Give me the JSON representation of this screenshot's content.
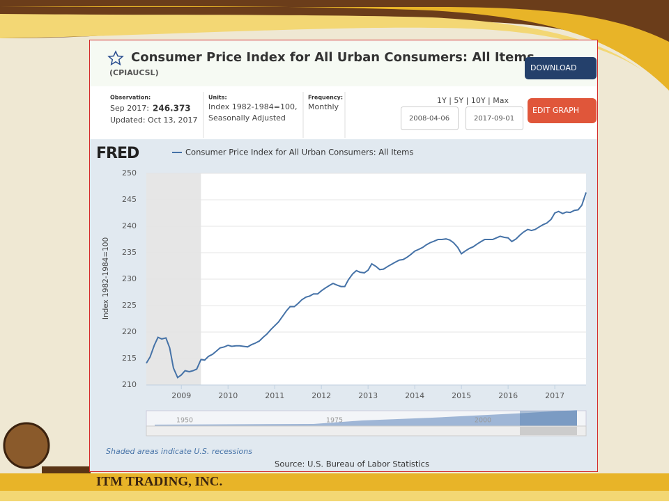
{
  "header": {
    "title": "Consumer Price Index for All Urban Consumers: All Items",
    "series_id": "(CPIAUCSL)",
    "download": "DOWNLOAD"
  },
  "info": {
    "observation_label": "Observation:",
    "observation_date": "Sep 2017:",
    "observation_value": "246.373",
    "updated": "Updated: Oct 13, 2017",
    "units_label": "Units:",
    "units_1": "Index 1982-1984=100,",
    "units_2": "Seasonally Adjusted",
    "frequency_label": "Frequency:",
    "frequency": "Monthly",
    "ranges": "1Y | 5Y | 10Y | Max",
    "start_date": "2008-04-06",
    "end_date": "2017-09-01",
    "edit": "EDIT GRAPH"
  },
  "chart_data": {
    "type": "line",
    "logo": "FRED",
    "ylabel": "Index 1982-1984=100",
    "series": [
      {
        "name": "Consumer Price Index for All Urban Consumers: All Items",
        "color": "#4572a7",
        "x": [
          2008.25,
          2008.33,
          2008.42,
          2008.5,
          2008.58,
          2008.67,
          2008.75,
          2008.83,
          2008.92,
          2009,
          2009.08,
          2009.17,
          2009.25,
          2009.33,
          2009.42,
          2009.5,
          2009.58,
          2009.67,
          2009.75,
          2009.83,
          2009.92,
          2010,
          2010.08,
          2010.17,
          2010.25,
          2010.33,
          2010.42,
          2010.5,
          2010.58,
          2010.67,
          2010.75,
          2010.83,
          2010.92,
          2011,
          2011.08,
          2011.17,
          2011.25,
          2011.33,
          2011.42,
          2011.5,
          2011.58,
          2011.67,
          2011.75,
          2011.83,
          2011.92,
          2012,
          2012.08,
          2012.17,
          2012.25,
          2012.33,
          2012.42,
          2012.5,
          2012.58,
          2012.67,
          2012.75,
          2012.83,
          2012.92,
          2013,
          2013.08,
          2013.17,
          2013.25,
          2013.33,
          2013.42,
          2013.5,
          2013.58,
          2013.67,
          2013.75,
          2013.83,
          2013.92,
          2014,
          2014.08,
          2014.17,
          2014.25,
          2014.33,
          2014.42,
          2014.5,
          2014.58,
          2014.67,
          2014.75,
          2014.83,
          2014.92,
          2015,
          2015.08,
          2015.17,
          2015.25,
          2015.33,
          2015.42,
          2015.5,
          2015.58,
          2015.67,
          2015.75,
          2015.83,
          2015.92,
          2016,
          2016.08,
          2016.17,
          2016.25,
          2016.33,
          2016.42,
          2016.5,
          2016.58,
          2016.67,
          2016.75,
          2016.83,
          2016.92,
          2017,
          2017.08,
          2017.17,
          2017.25,
          2017.33,
          2017.42,
          2017.5,
          2017.58,
          2017.67
        ],
        "values": [
          214.1,
          215.3,
          217.5,
          219.0,
          218.7,
          218.9,
          217.0,
          213.2,
          211.4,
          211.9,
          212.7,
          212.5,
          212.7,
          213.0,
          214.8,
          214.7,
          215.4,
          215.8,
          216.4,
          217.0,
          217.2,
          217.5,
          217.3,
          217.4,
          217.4,
          217.3,
          217.2,
          217.6,
          217.9,
          218.3,
          219.0,
          219.6,
          220.5,
          221.2,
          221.9,
          223.0,
          224.0,
          224.8,
          224.8,
          225.4,
          226.1,
          226.6,
          226.8,
          227.2,
          227.2,
          227.8,
          228.3,
          228.8,
          229.2,
          228.9,
          228.6,
          228.6,
          229.9,
          231.0,
          231.6,
          231.3,
          231.2,
          231.7,
          232.9,
          232.4,
          231.8,
          231.9,
          232.4,
          232.8,
          233.2,
          233.6,
          233.7,
          234.1,
          234.7,
          235.3,
          235.6,
          236.0,
          236.5,
          236.9,
          237.2,
          237.5,
          237.5,
          237.6,
          237.4,
          236.9,
          236.0,
          234.8,
          235.3,
          235.8,
          236.1,
          236.6,
          237.1,
          237.5,
          237.5,
          237.5,
          237.8,
          238.1,
          237.9,
          237.8,
          237.1,
          237.6,
          238.3,
          238.9,
          239.4,
          239.2,
          239.4,
          239.9,
          240.3,
          240.6,
          241.3,
          242.5,
          242.8,
          242.4,
          242.7,
          242.6,
          243.0,
          243.1,
          244.0,
          246.4
        ]
      }
    ],
    "recession": [
      2008.25,
      2009.42
    ],
    "xlim": [
      2008.25,
      2017.67
    ],
    "xticks": [
      2009,
      2010,
      2011,
      2012,
      2013,
      2014,
      2015,
      2016,
      2017
    ],
    "ylim": [
      210,
      250
    ],
    "yticks": [
      210,
      215,
      220,
      225,
      230,
      235,
      240,
      245,
      250
    ],
    "grid": true,
    "navigator_labels": [
      "1950",
      "1975",
      "2000"
    ],
    "recession_note": "Shaded areas indicate U.S. recessions",
    "source": "Source: U.S. Bureau of Labor Statistics"
  },
  "footer": {
    "company": "ITM TRADING, INC."
  }
}
